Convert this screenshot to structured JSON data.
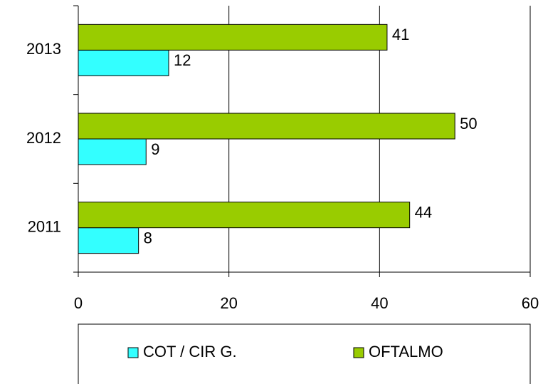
{
  "chart_data": {
    "type": "bar",
    "orientation": "horizontal",
    "categories": [
      "2011",
      "2012",
      "2013"
    ],
    "series": [
      {
        "name": "COT / CIR G.",
        "color": "#33ffff",
        "values": [
          8,
          9,
          12
        ]
      },
      {
        "name": "OFTALMO",
        "color": "#99cc00",
        "values": [
          44,
          50,
          41
        ]
      }
    ],
    "xlim": [
      0,
      60
    ],
    "xticks": [
      0,
      20,
      40,
      60
    ],
    "grid": true,
    "legend": "bottom"
  }
}
